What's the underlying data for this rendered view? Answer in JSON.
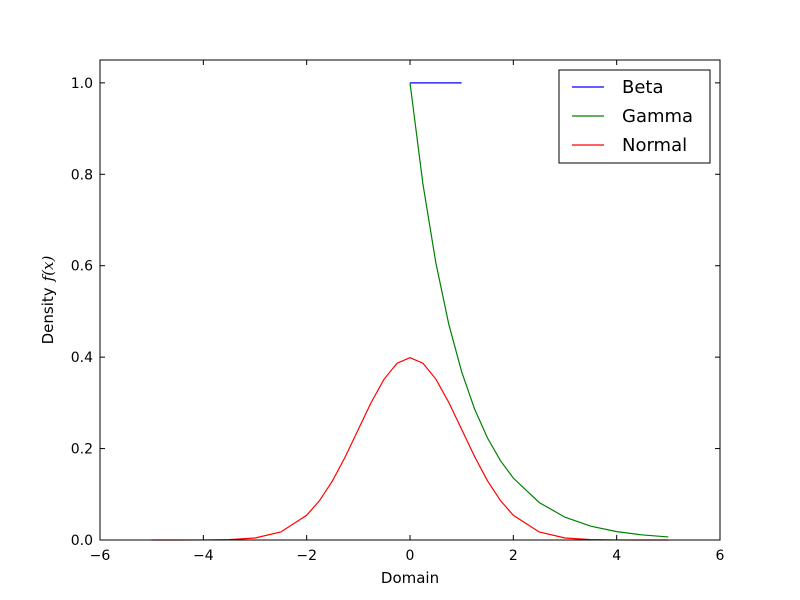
{
  "chart_data": {
    "type": "line",
    "xlabel": "Domain",
    "ylabel": "Density",
    "ylabel_math": "f(x)",
    "xlim": [
      -6,
      6
    ],
    "ylim": [
      0,
      1.05
    ],
    "xticks": [
      -6,
      -4,
      -2,
      0,
      2,
      4,
      6
    ],
    "xtick_labels": [
      "−6",
      "−4",
      "−2",
      "0",
      "2",
      "4",
      "6"
    ],
    "yticks": [
      0.0,
      0.2,
      0.4,
      0.6,
      0.8,
      1.0
    ],
    "ytick_labels": [
      "0.0",
      "0.2",
      "0.4",
      "0.6",
      "0.8",
      "1.0"
    ],
    "grid": false,
    "legend_position": "top-right",
    "series": [
      {
        "name": "Beta",
        "color": "#0000ff",
        "points": [
          [
            0,
            1.0
          ],
          [
            1,
            1.0
          ]
        ]
      },
      {
        "name": "Gamma",
        "color": "#008000",
        "points": [
          [
            0,
            1.0
          ],
          [
            0.25,
            0.7788
          ],
          [
            0.5,
            0.6065
          ],
          [
            0.75,
            0.4724
          ],
          [
            1.0,
            0.3679
          ],
          [
            1.25,
            0.2865
          ],
          [
            1.5,
            0.2231
          ],
          [
            1.75,
            0.1738
          ],
          [
            2.0,
            0.1353
          ],
          [
            2.5,
            0.0821
          ],
          [
            3.0,
            0.0498
          ],
          [
            3.5,
            0.0302
          ],
          [
            4.0,
            0.0183
          ],
          [
            4.5,
            0.0111
          ],
          [
            5.0,
            0.0067
          ]
        ]
      },
      {
        "name": "Normal",
        "color": "#ff0000",
        "points": [
          [
            -5.0,
            0.0
          ],
          [
            -4.5,
            2e-05
          ],
          [
            -4.0,
            0.0001
          ],
          [
            -3.5,
            0.0009
          ],
          [
            -3.0,
            0.0044
          ],
          [
            -2.5,
            0.0175
          ],
          [
            -2.0,
            0.054
          ],
          [
            -1.75,
            0.0863
          ],
          [
            -1.5,
            0.1295
          ],
          [
            -1.25,
            0.1826
          ],
          [
            -1.0,
            0.242
          ],
          [
            -0.75,
            0.3011
          ],
          [
            -0.5,
            0.3521
          ],
          [
            -0.25,
            0.3867
          ],
          [
            0.0,
            0.3989
          ],
          [
            0.25,
            0.3867
          ],
          [
            0.5,
            0.3521
          ],
          [
            0.75,
            0.3011
          ],
          [
            1.0,
            0.242
          ],
          [
            1.25,
            0.1826
          ],
          [
            1.5,
            0.1295
          ],
          [
            1.75,
            0.0863
          ],
          [
            2.0,
            0.054
          ],
          [
            2.5,
            0.0175
          ],
          [
            3.0,
            0.0044
          ],
          [
            3.5,
            0.0009
          ],
          [
            4.0,
            0.0001
          ],
          [
            4.5,
            2e-05
          ],
          [
            5.0,
            0.0
          ]
        ]
      }
    ]
  }
}
